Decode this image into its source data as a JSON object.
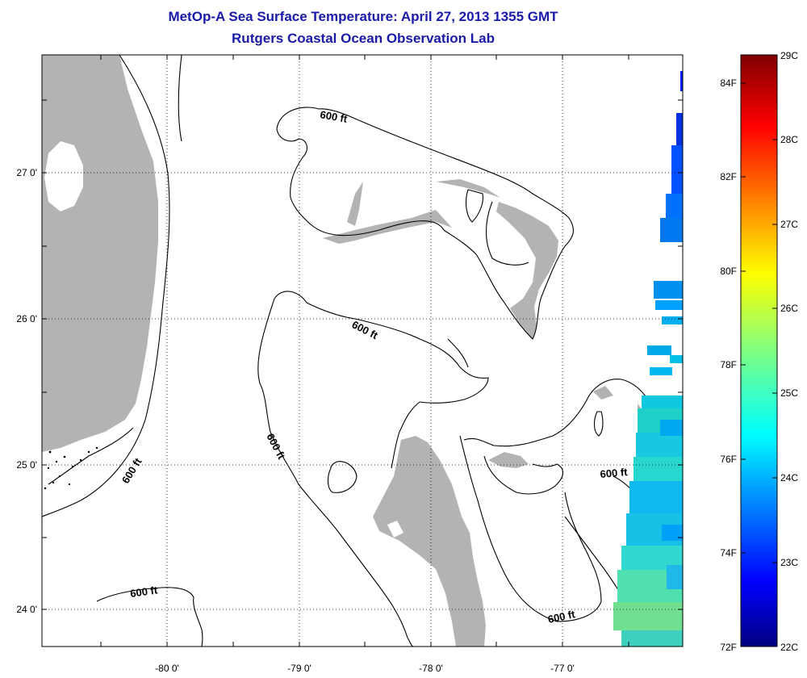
{
  "header": {
    "title": "MetOp-A Sea Surface Temperature:  April 27, 2013 1355 GMT",
    "subtitle": "Rutgers Coastal Ocean Observation Lab"
  },
  "map": {
    "lon_labels": [
      "-80 0'",
      "-79 0'",
      "-78 0'",
      "-77 0'"
    ],
    "lat_labels": [
      "27 0'",
      "26 0'",
      "25 0'",
      "24 0'"
    ],
    "contour_label": "600 ft",
    "colors": {
      "land": "#b3b3b3",
      "contour": "#000000",
      "frame": "#000000"
    }
  },
  "colorbar": {
    "fahrenheit_labels": [
      "84F",
      "82F",
      "80F",
      "78F",
      "76F",
      "74F",
      "72F"
    ],
    "celsius_labels": [
      "29C",
      "28C",
      "27C",
      "26C",
      "25C",
      "24C",
      "23C",
      "22C"
    ],
    "range_c": [
      22,
      29
    ],
    "range_f": [
      72,
      84
    ]
  }
}
